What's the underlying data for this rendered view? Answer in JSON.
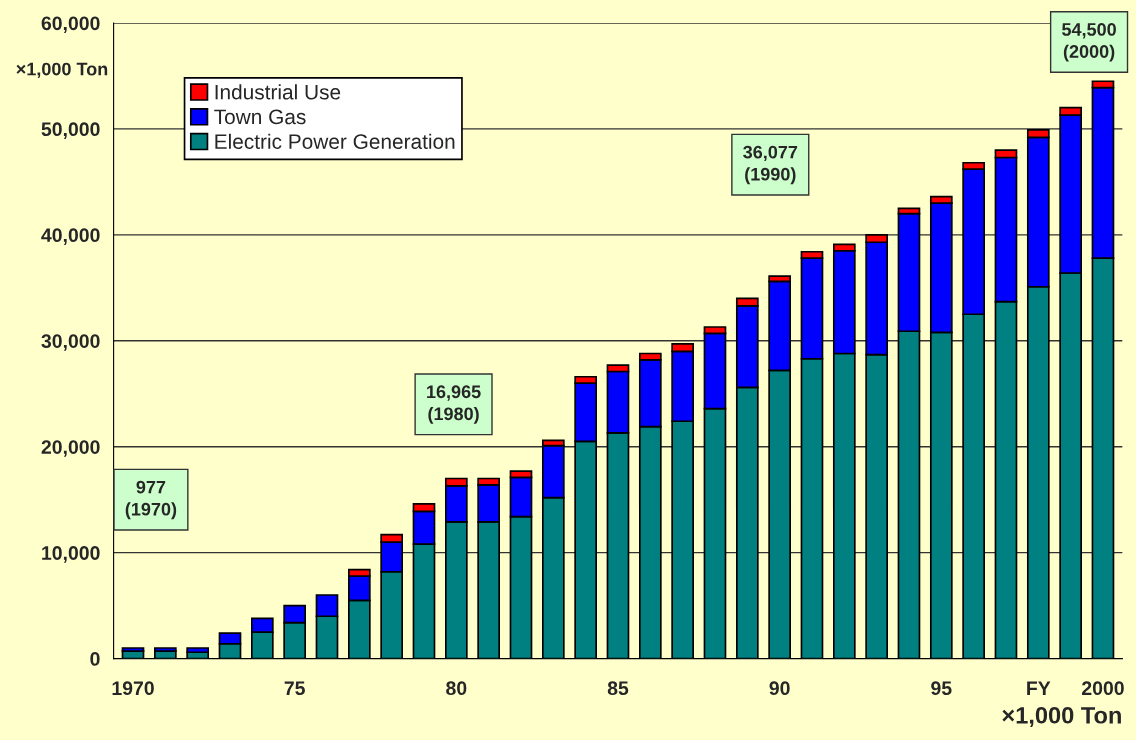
{
  "chart_data": {
    "type": "bar",
    "stacked": true,
    "ylabel": "×1,000 Ton",
    "xlabel": "×1,000 Ton",
    "categories": [
      "1970",
      null,
      null,
      null,
      null,
      "75",
      null,
      null,
      null,
      null,
      "80",
      null,
      null,
      null,
      null,
      "85",
      null,
      null,
      null,
      null,
      "90",
      null,
      null,
      null,
      null,
      "95",
      null,
      null,
      "FY",
      null,
      "2000"
    ],
    "series": [
      {
        "name": "Electric Power Generation",
        "color": "#008080",
        "values": [
          700,
          700,
          600,
          1400,
          2500,
          3400,
          4000,
          5500,
          8200,
          10800,
          12900,
          12900,
          13400,
          15200,
          20500,
          21300,
          21900,
          22400,
          23600,
          25600,
          27200,
          28300,
          28800,
          28700,
          30900,
          30800,
          32500,
          33700,
          35100,
          36400,
          37800
        ]
      },
      {
        "name": "Town Gas",
        "color": "#0000ff",
        "values": [
          300,
          300,
          400,
          1000,
          1300,
          1600,
          2000,
          2300,
          2800,
          3100,
          3400,
          3500,
          3700,
          4900,
          5500,
          5800,
          6300,
          6600,
          7100,
          7700,
          8400,
          9500,
          9700,
          10600,
          11100,
          12200,
          13700,
          13600,
          14100,
          14900,
          16100
        ]
      },
      {
        "name": "Industrial Use",
        "color": "#ff0000",
        "values": [
          null,
          null,
          null,
          null,
          null,
          null,
          null,
          600,
          700,
          700,
          700,
          600,
          600,
          500,
          600,
          600,
          600,
          700,
          600,
          700,
          500,
          600,
          600,
          700,
          500,
          600,
          600,
          700,
          700,
          700,
          600
        ]
      }
    ],
    "annotations": [
      "977\n(1970)",
      "16,965\n(1980)",
      "36,077\n(1990)",
      "54,500\n(2000)"
    ],
    "ylim": [
      0,
      60000
    ],
    "yticks": [
      0,
      {
        "value": 10000,
        "label": "10,000"
      },
      {
        "value": 20000,
        "label": "20,000"
      },
      {
        "value": 30000,
        "label": "30,000"
      },
      {
        "value": 40000,
        "label": "40,000"
      },
      {
        "value": 50000,
        "label": "50,000"
      },
      {
        "value": 60000,
        "label": "60,000"
      }
    ],
    "grid": "y",
    "legend": "top left"
  }
}
